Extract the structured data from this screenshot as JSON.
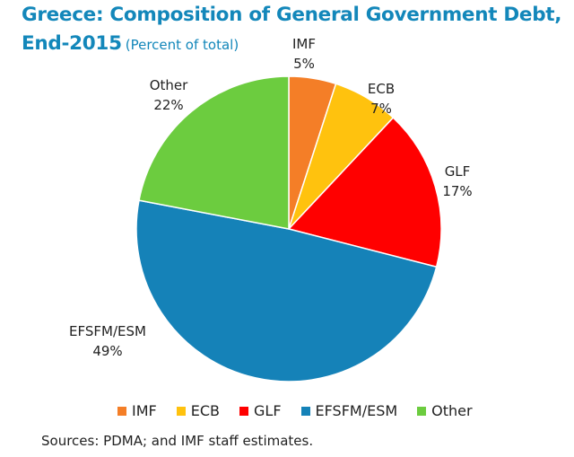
{
  "chart_data": {
    "type": "pie",
    "title": "Greece: Composition of General Government Debt,",
    "title_line2": "End-2015",
    "subtitle": "(Percent of total)",
    "start": "top, clockwise",
    "slices": [
      {
        "label": "IMF",
        "value": 5,
        "value_label": "5%",
        "color": "#F47E27"
      },
      {
        "label": "ECB",
        "value": 7,
        "value_label": "7%",
        "color": "#FFC20E"
      },
      {
        "label": "GLF",
        "value": 17,
        "value_label": "17%",
        "color": "#FF0000"
      },
      {
        "label": "EFSFM/ESM",
        "value": 49,
        "value_label": "49%",
        "color": "#1582B8"
      },
      {
        "label": "Other",
        "value": 22,
        "value_label": "22%",
        "color": "#6CCC3F"
      }
    ],
    "legend_position": "bottom",
    "source": "Sources: PDMA; and IMF staff estimates."
  }
}
